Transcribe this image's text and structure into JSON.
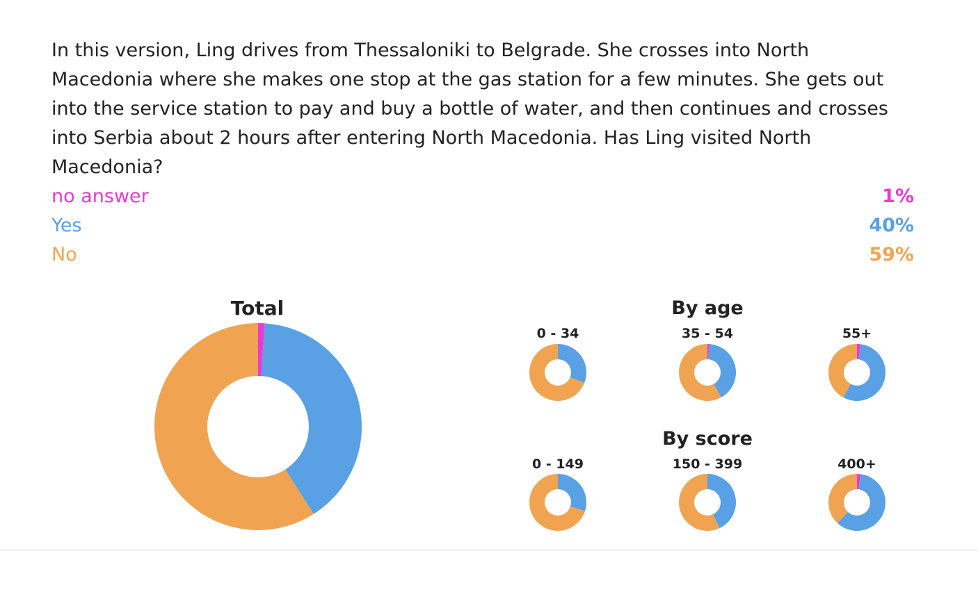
{
  "question": "In this version, Ling drives from Thessaloniki to Belgrade. She crosses into North Macedonia where she makes one stop at the gas station for a few minutes. She gets out into the service station to pay and buy a bottle of water, and then continues and crosses into Serbia about 2 hours after entering North Macedonia. Has Ling visited North Macedonia?",
  "answers": [
    {
      "label": "no answer",
      "percent": "1%",
      "color": "#e93ad6"
    },
    {
      "label": "Yes",
      "percent": "40%",
      "color": "#59a0e4"
    },
    {
      "label": "No",
      "percent": "59%",
      "color": "#f0a452"
    }
  ],
  "chart_data": [
    {
      "type": "donut",
      "title": "Total",
      "categories": [
        "no answer",
        "Yes",
        "No"
      ],
      "values": [
        1,
        40,
        59
      ]
    },
    {
      "type": "donut",
      "group": "By age",
      "title": "0 - 34",
      "categories": [
        "no answer",
        "Yes",
        "No"
      ],
      "values": [
        0,
        31,
        69
      ]
    },
    {
      "type": "donut",
      "group": "By age",
      "title": "35 - 54",
      "categories": [
        "no answer",
        "Yes",
        "No"
      ],
      "values": [
        1,
        41,
        58
      ]
    },
    {
      "type": "donut",
      "group": "By age",
      "title": "55+",
      "categories": [
        "no answer",
        "Yes",
        "No"
      ],
      "values": [
        2,
        56,
        42
      ]
    },
    {
      "type": "donut",
      "group": "By score",
      "title": "0 - 149",
      "categories": [
        "no answer",
        "Yes",
        "No"
      ],
      "values": [
        0,
        30,
        70
      ]
    },
    {
      "type": "donut",
      "group": "By score",
      "title": "150 - 399",
      "categories": [
        "no answer",
        "Yes",
        "No"
      ],
      "values": [
        0,
        43,
        57
      ]
    },
    {
      "type": "donut",
      "group": "By score",
      "title": "400+",
      "categories": [
        "no answer",
        "Yes",
        "No"
      ],
      "values": [
        2,
        60,
        38
      ]
    }
  ],
  "groups": {
    "by_age": "By age",
    "by_score": "By score"
  }
}
